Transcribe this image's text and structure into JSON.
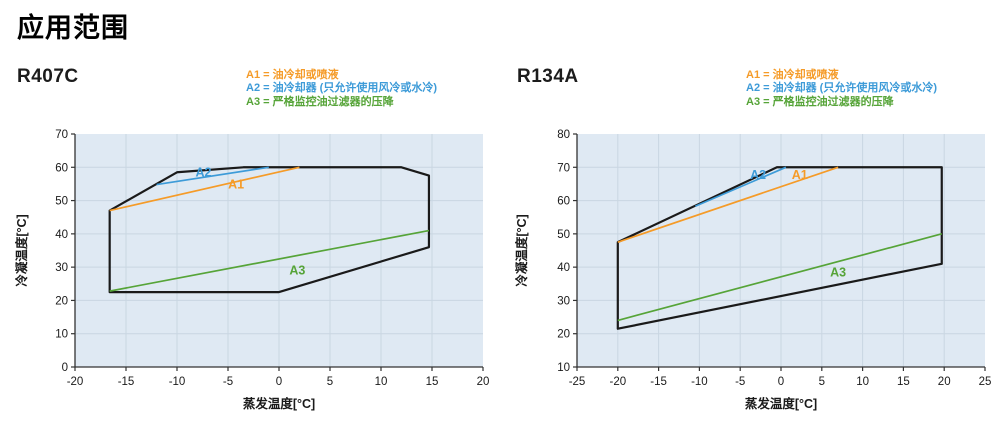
{
  "page": {
    "title": "应用范围"
  },
  "legend": {
    "items": [
      {
        "label": "A1 = 油冷却或喷液",
        "color": "#F59B28"
      },
      {
        "label": "A2 = 油冷却器 (只允许使用风冷或水冷)",
        "color": "#3D9BD8"
      },
      {
        "label": "A3 = 严格监控油过滤器的压降",
        "color": "#56A438"
      }
    ]
  },
  "chart_data": [
    {
      "id": "r407c",
      "type": "line",
      "title": "R407C",
      "xlabel": "蒸发温度[°C]",
      "ylabel": "冷凝温度[°C]",
      "xlim": [
        -20,
        20
      ],
      "ylim": [
        0,
        70
      ],
      "xticks": [
        -20,
        -15,
        -10,
        -5,
        0,
        5,
        10,
        15,
        20
      ],
      "yticks": [
        0,
        10,
        20,
        30,
        40,
        50,
        60,
        70
      ],
      "grid": true,
      "plot_bg": "#DFE9F3",
      "grid_color": "#C9D6E2",
      "axis_color": "#333333",
      "envelope": {
        "name": "application-envelope",
        "color": "#1A1A1A",
        "points": [
          [
            -16.6,
            22.5
          ],
          [
            -16.6,
            47
          ],
          [
            -10,
            58.5
          ],
          [
            -3.5,
            60
          ],
          [
            12,
            60
          ],
          [
            14.7,
            57.5
          ],
          [
            14.7,
            36
          ],
          [
            0,
            22.5
          ]
        ]
      },
      "series": [
        {
          "name": "A1",
          "color": "#F59B28",
          "points": [
            [
              -16.6,
              47
            ],
            [
              2,
              60
            ]
          ],
          "label_at": [
            -4.2,
            55.0
          ]
        },
        {
          "name": "A2",
          "color": "#3D9BD8",
          "points": [
            [
              -12,
              54.8
            ],
            [
              -1,
              60
            ]
          ],
          "label_at": [
            -7.4,
            58.6
          ]
        },
        {
          "name": "A3",
          "color": "#56A438",
          "points": [
            [
              -16.6,
              22.8
            ],
            [
              14.7,
              41
            ]
          ],
          "label_at": [
            1.8,
            29.2
          ]
        }
      ]
    },
    {
      "id": "r134a",
      "type": "line",
      "title": "R134A",
      "xlabel": "蒸发温度[°C]",
      "ylabel": "冷凝温度[°C]",
      "xlim": [
        -25,
        25
      ],
      "ylim": [
        10,
        80
      ],
      "xticks": [
        -25,
        -20,
        -15,
        -10,
        -5,
        0,
        5,
        10,
        15,
        20,
        25
      ],
      "yticks": [
        10,
        20,
        30,
        40,
        50,
        60,
        70,
        80
      ],
      "grid": true,
      "plot_bg": "#DFE9F3",
      "grid_color": "#C9D6E2",
      "axis_color": "#333333",
      "envelope": {
        "name": "application-envelope",
        "color": "#1A1A1A",
        "points": [
          [
            -20,
            21.5
          ],
          [
            -20,
            47.5
          ],
          [
            -0.5,
            70
          ],
          [
            19.7,
            70
          ],
          [
            19.7,
            41
          ]
        ]
      },
      "series": [
        {
          "name": "A1",
          "color": "#F59B28",
          "points": [
            [
              -20,
              47.5
            ],
            [
              7,
              70
            ]
          ],
          "label_at": [
            2.3,
            67.9
          ]
        },
        {
          "name": "A2",
          "color": "#3D9BD8",
          "points": [
            [
              -10.5,
              58.3
            ],
            [
              0.6,
              70
            ]
          ],
          "label_at": [
            -2.8,
            67.9
          ]
        },
        {
          "name": "A3",
          "color": "#56A438",
          "points": [
            [
              -20,
              24
            ],
            [
              19.7,
              50
            ]
          ],
          "label_at": [
            7,
            38.5
          ]
        }
      ]
    }
  ]
}
